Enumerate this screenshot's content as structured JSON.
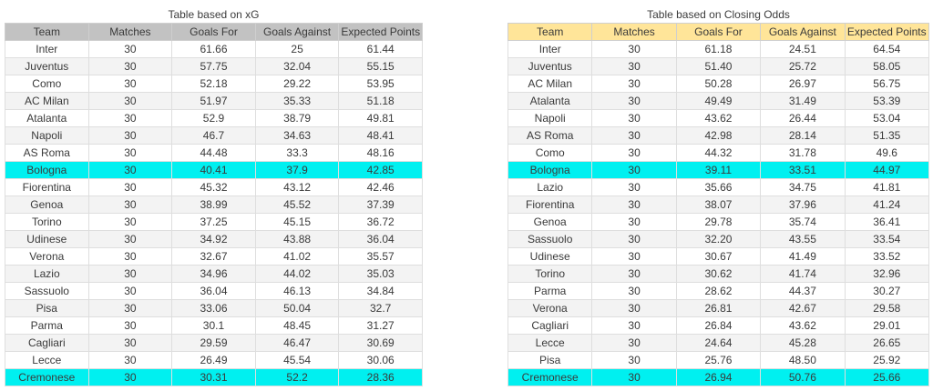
{
  "chart_data": [
    {
      "type": "table",
      "title": "Table based on xG",
      "columns": [
        "Team",
        "Matches",
        "Goals For",
        "Goals Against",
        "Expected Points"
      ],
      "header_bg": "#c2c2c2",
      "highlight_bg": "#00f0f0",
      "rows": [
        {
          "cells": [
            "Inter",
            "30",
            "61.66",
            "25",
            "61.44"
          ],
          "highlight": false
        },
        {
          "cells": [
            "Juventus",
            "30",
            "57.75",
            "32.04",
            "55.15"
          ],
          "highlight": false
        },
        {
          "cells": [
            "Como",
            "30",
            "52.18",
            "29.22",
            "53.95"
          ],
          "highlight": false
        },
        {
          "cells": [
            "AC Milan",
            "30",
            "51.97",
            "35.33",
            "51.18"
          ],
          "highlight": false
        },
        {
          "cells": [
            "Atalanta",
            "30",
            "52.9",
            "38.79",
            "49.81"
          ],
          "highlight": false
        },
        {
          "cells": [
            "Napoli",
            "30",
            "46.7",
            "34.63",
            "48.41"
          ],
          "highlight": false
        },
        {
          "cells": [
            "AS Roma",
            "30",
            "44.48",
            "33.3",
            "48.16"
          ],
          "highlight": false
        },
        {
          "cells": [
            "Bologna",
            "30",
            "40.41",
            "37.9",
            "42.85"
          ],
          "highlight": true
        },
        {
          "cells": [
            "Fiorentina",
            "30",
            "45.32",
            "43.12",
            "42.46"
          ],
          "highlight": false
        },
        {
          "cells": [
            "Genoa",
            "30",
            "38.99",
            "45.52",
            "37.39"
          ],
          "highlight": false
        },
        {
          "cells": [
            "Torino",
            "30",
            "37.25",
            "45.15",
            "36.72"
          ],
          "highlight": false
        },
        {
          "cells": [
            "Udinese",
            "30",
            "34.92",
            "43.88",
            "36.04"
          ],
          "highlight": false
        },
        {
          "cells": [
            "Verona",
            "30",
            "32.67",
            "41.02",
            "35.57"
          ],
          "highlight": false
        },
        {
          "cells": [
            "Lazio",
            "30",
            "34.96",
            "44.02",
            "35.03"
          ],
          "highlight": false
        },
        {
          "cells": [
            "Sassuolo",
            "30",
            "36.04",
            "46.13",
            "34.84"
          ],
          "highlight": false
        },
        {
          "cells": [
            "Pisa",
            "30",
            "33.06",
            "50.04",
            "32.7"
          ],
          "highlight": false
        },
        {
          "cells": [
            "Parma",
            "30",
            "30.1",
            "48.45",
            "31.27"
          ],
          "highlight": false
        },
        {
          "cells": [
            "Cagliari",
            "30",
            "29.59",
            "46.47",
            "30.69"
          ],
          "highlight": false
        },
        {
          "cells": [
            "Lecce",
            "30",
            "26.49",
            "45.54",
            "30.06"
          ],
          "highlight": false
        },
        {
          "cells": [
            "Cremonese",
            "30",
            "30.31",
            "52.2",
            "28.36"
          ],
          "highlight": true
        }
      ]
    },
    {
      "type": "table",
      "title": "Table based on Closing Odds",
      "columns": [
        "Team",
        "Matches",
        "Goals For",
        "Goals Against",
        "Expected Points"
      ],
      "header_bg": "#ffe599",
      "highlight_bg": "#00f0f0",
      "rows": [
        {
          "cells": [
            "Inter",
            "30",
            "61.18",
            "24.51",
            "64.54"
          ],
          "highlight": false
        },
        {
          "cells": [
            "Juventus",
            "30",
            "51.40",
            "25.72",
            "58.05"
          ],
          "highlight": false
        },
        {
          "cells": [
            "AC Milan",
            "30",
            "50.28",
            "26.97",
            "56.75"
          ],
          "highlight": false
        },
        {
          "cells": [
            "Atalanta",
            "30",
            "49.49",
            "31.49",
            "53.39"
          ],
          "highlight": false
        },
        {
          "cells": [
            "Napoli",
            "30",
            "43.62",
            "26.44",
            "53.04"
          ],
          "highlight": false
        },
        {
          "cells": [
            "AS Roma",
            "30",
            "42.98",
            "28.14",
            "51.35"
          ],
          "highlight": false
        },
        {
          "cells": [
            "Como",
            "30",
            "44.32",
            "31.78",
            "49.6"
          ],
          "highlight": false
        },
        {
          "cells": [
            "Bologna",
            "30",
            "39.11",
            "33.51",
            "44.97"
          ],
          "highlight": true
        },
        {
          "cells": [
            "Lazio",
            "30",
            "35.66",
            "34.75",
            "41.81"
          ],
          "highlight": false
        },
        {
          "cells": [
            "Fiorentina",
            "30",
            "38.07",
            "37.96",
            "41.24"
          ],
          "highlight": false
        },
        {
          "cells": [
            "Genoa",
            "30",
            "29.78",
            "35.74",
            "36.41"
          ],
          "highlight": false
        },
        {
          "cells": [
            "Sassuolo",
            "30",
            "32.20",
            "43.55",
            "33.54"
          ],
          "highlight": false
        },
        {
          "cells": [
            "Udinese",
            "30",
            "30.67",
            "41.49",
            "33.52"
          ],
          "highlight": false
        },
        {
          "cells": [
            "Torino",
            "30",
            "30.62",
            "41.74",
            "32.96"
          ],
          "highlight": false
        },
        {
          "cells": [
            "Parma",
            "30",
            "28.62",
            "44.37",
            "30.27"
          ],
          "highlight": false
        },
        {
          "cells": [
            "Verona",
            "30",
            "26.81",
            "42.67",
            "29.58"
          ],
          "highlight": false
        },
        {
          "cells": [
            "Cagliari",
            "30",
            "26.84",
            "43.62",
            "29.01"
          ],
          "highlight": false
        },
        {
          "cells": [
            "Lecce",
            "30",
            "24.64",
            "45.28",
            "26.65"
          ],
          "highlight": false
        },
        {
          "cells": [
            "Pisa",
            "30",
            "25.76",
            "48.50",
            "25.92"
          ],
          "highlight": false
        },
        {
          "cells": [
            "Cremonese",
            "30",
            "26.94",
            "50.76",
            "25.66"
          ],
          "highlight": true
        }
      ]
    }
  ]
}
